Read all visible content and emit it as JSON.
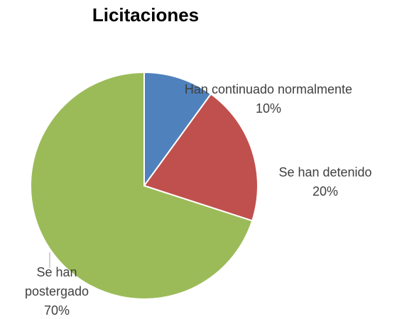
{
  "chart_data": {
    "type": "pie",
    "title": "Licitaciones",
    "categories": [
      "Han continuado normalmente",
      "Se han detenido",
      "Se han postergado"
    ],
    "values": [
      10,
      20,
      70
    ],
    "value_labels": [
      "10%",
      "20%",
      "70%"
    ],
    "colors": [
      "#4f81bd",
      "#c0504d",
      "#9bbb59"
    ]
  }
}
